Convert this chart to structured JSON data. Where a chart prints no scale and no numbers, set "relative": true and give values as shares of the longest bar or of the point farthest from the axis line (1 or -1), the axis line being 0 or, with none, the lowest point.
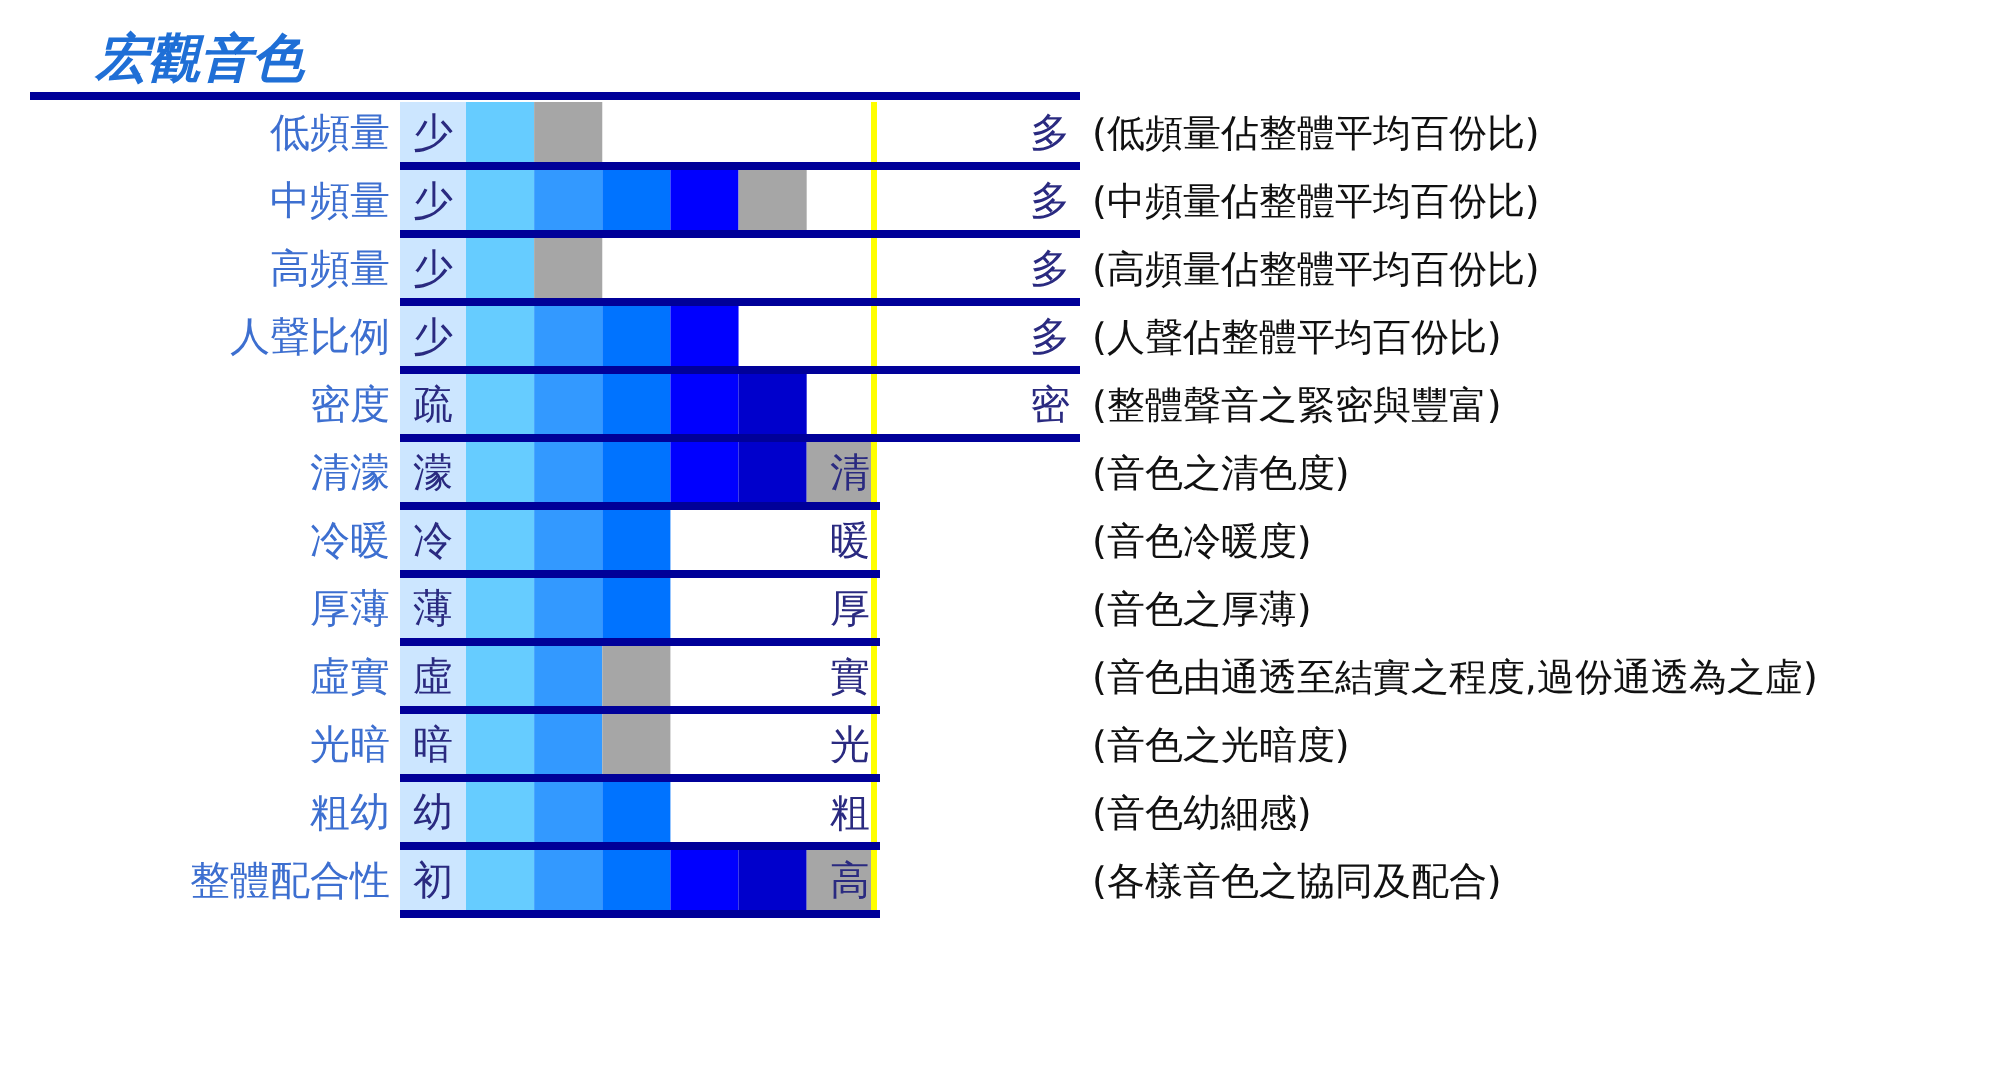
{
  "chart_data": {
    "type": "bar",
    "orientation": "horizontal",
    "stacked": true,
    "relative": true,
    "title": "宏觀音色",
    "categories": [
      "低頻量",
      "中頻量",
      "高頻量",
      "人聲比例",
      "密度",
      "清濛",
      "冷暖",
      "厚薄",
      "虛實",
      "光暗",
      "粗幼",
      "整體配合性"
    ],
    "series": [
      {
        "color": "#66ccff",
        "values": [
          0.167,
          0.167,
          0.167,
          0.167,
          0.167,
          0.167,
          0.167,
          0.167,
          0.167,
          0.167,
          0.167,
          0.167
        ]
      },
      {
        "colors": [
          "#a6a6a6",
          "#3399ff",
          "#a6a6a6",
          "#3399ff",
          "#3399ff",
          "#3399ff",
          "#3399ff",
          "#3399ff",
          "#3399ff",
          "#3399ff",
          "#3399ff",
          "#3399ff"
        ],
        "values": [
          0.167,
          0.167,
          0.167,
          0.167,
          0.167,
          0.167,
          0.167,
          0.167,
          0.167,
          0.167,
          0.167,
          0.167
        ]
      },
      {
        "colors": [
          null,
          "#0073ff",
          null,
          "#0073ff",
          "#0073ff",
          "#0073ff",
          "#0073ff",
          "#0073ff",
          "#a6a6a6",
          "#a6a6a6",
          "#0073ff",
          "#0073ff"
        ],
        "values": [
          null,
          0.167,
          null,
          0.167,
          0.167,
          0.167,
          0.167,
          0.167,
          0.167,
          0.167,
          0.167,
          0.167
        ]
      },
      {
        "color": "#0000ff",
        "values": [
          null,
          0.167,
          null,
          0.167,
          0.167,
          0.167,
          null,
          null,
          null,
          null,
          null,
          0.167
        ]
      },
      {
        "colors": [
          null,
          "#a6a6a6",
          null,
          null,
          "#0000cc",
          "#0000cc",
          null,
          null,
          null,
          null,
          null,
          "#0000cc"
        ],
        "values": [
          null,
          0.167,
          null,
          null,
          0.167,
          0.167,
          null,
          null,
          null,
          null,
          null,
          0.167
        ]
      },
      {
        "color": "#a6a6a6",
        "values": [
          null,
          null,
          null,
          null,
          null,
          0.165,
          null,
          null,
          null,
          null,
          null,
          0.165
        ]
      }
    ],
    "ref_lines": [
      {
        "axis": "x",
        "value": 1,
        "color": "#ffff00"
      }
    ],
    "annotations": [
      "少",
      "多",
      "(低頻量佔整體平均百份比)",
      "少",
      "多",
      "(中頻量佔整體平均百份比)",
      "少",
      "多",
      "(高頻量佔整體平均百份比)",
      "少",
      "多",
      "(人聲佔整體平均百份比)",
      "疏",
      "密",
      "(整體聲音之緊密與豐富)",
      "濛",
      "清",
      "(音色之清色度)",
      "冷",
      "暖",
      "(音色冷暖度)",
      "薄",
      "厚",
      "(音色之厚薄)",
      "虛",
      "實",
      "(音色由通透至結實之程度,過份通透為之虛)",
      "暗",
      "光",
      "(音色之光暗度)",
      "幼",
      "粗",
      "(音色幼細感)",
      "初",
      "高",
      "(各樣音色之協同及配合)"
    ]
  }
}
